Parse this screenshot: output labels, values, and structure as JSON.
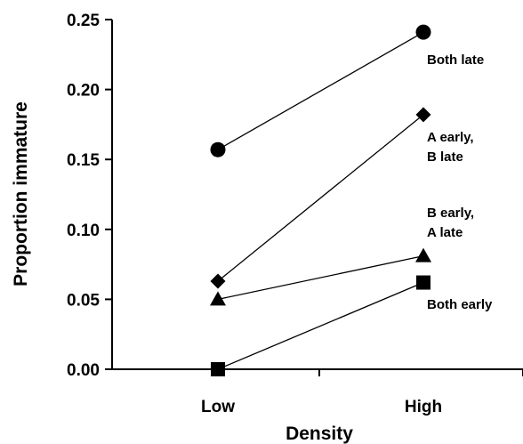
{
  "chart_data": {
    "type": "line",
    "title": "",
    "xlabel": "Density",
    "ylabel": "Proportion immature",
    "categories": [
      "Low",
      "High"
    ],
    "ylim": [
      0,
      0.25
    ],
    "yticks": [
      "0.00",
      "0.05",
      "0.10",
      "0.15",
      "0.20",
      "0.25"
    ],
    "grid": false,
    "legend": "none (series labeled inline at right)",
    "series": [
      {
        "name": "Both late",
        "label_lines": [
          "Both late"
        ],
        "marker": "circle",
        "values": [
          0.157,
          0.241
        ]
      },
      {
        "name": "A early, B late",
        "label_lines": [
          "A early,",
          "B late"
        ],
        "marker": "diamond",
        "values": [
          0.063,
          0.182
        ]
      },
      {
        "name": "B early, A late",
        "label_lines": [
          "B early,",
          "A late"
        ],
        "marker": "triangle",
        "values": [
          0.05,
          0.081
        ]
      },
      {
        "name": "Both early",
        "label_lines": [
          "Both early"
        ],
        "marker": "square",
        "values": [
          0.0,
          0.062
        ]
      }
    ],
    "colors": {
      "marker": "#000000",
      "line": "#000000"
    }
  }
}
